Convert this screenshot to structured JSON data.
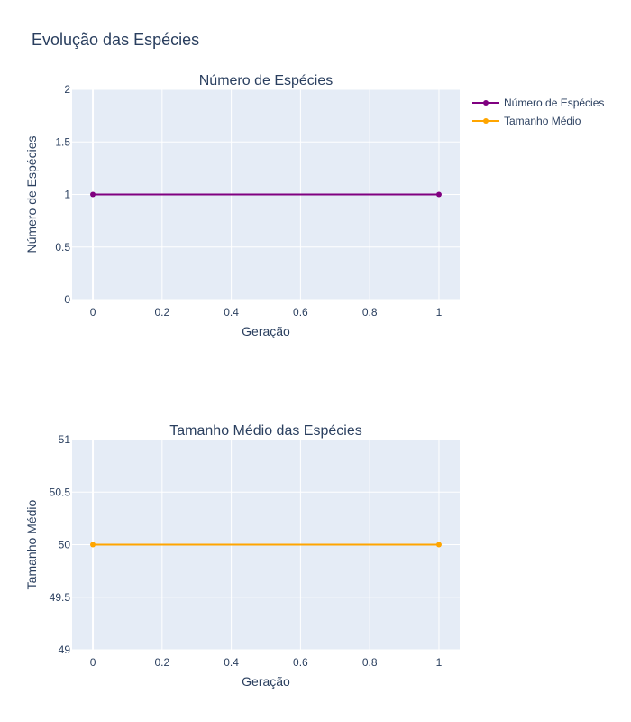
{
  "figure": {
    "title": "Evolução das Espécies"
  },
  "legend": {
    "placement": "top-right",
    "items": [
      {
        "label": "Número de Espécies",
        "color": "#800080"
      },
      {
        "label": "Tamanho Médio",
        "color": "#FFA500"
      }
    ]
  },
  "chart_data": [
    {
      "type": "line",
      "title": "Número de Espécies",
      "xlabel": "Geração",
      "ylabel": "Número de Espécies",
      "xlim": [
        -0.06,
        1.06
      ],
      "ylim": [
        0,
        2
      ],
      "xticks": [
        "0",
        "0.2",
        "0.4",
        "0.6",
        "0.8",
        "1"
      ],
      "xtick_values": [
        0,
        0.2,
        0.4,
        0.6,
        0.8,
        1
      ],
      "yticks": [
        "0",
        "0.5",
        "1",
        "1.5",
        "2"
      ],
      "ytick_values": [
        0,
        0.5,
        1,
        1.5,
        2
      ],
      "grid": true,
      "series": [
        {
          "name": "Número de Espécies",
          "color": "#800080",
          "x": [
            0,
            1
          ],
          "y": [
            1,
            1
          ]
        }
      ]
    },
    {
      "type": "line",
      "title": "Tamanho Médio das Espécies",
      "xlabel": "Geração",
      "ylabel": "Tamanho Médio",
      "xlim": [
        -0.06,
        1.06
      ],
      "ylim": [
        49,
        51
      ],
      "xticks": [
        "0",
        "0.2",
        "0.4",
        "0.6",
        "0.8",
        "1"
      ],
      "xtick_values": [
        0,
        0.2,
        0.4,
        0.6,
        0.8,
        1
      ],
      "yticks": [
        "49",
        "49.5",
        "50",
        "50.5",
        "51"
      ],
      "ytick_values": [
        49,
        49.5,
        50,
        50.5,
        51
      ],
      "grid": true,
      "series": [
        {
          "name": "Tamanho Médio",
          "color": "#FFA500",
          "x": [
            0,
            1
          ],
          "y": [
            50,
            50
          ]
        }
      ]
    }
  ]
}
